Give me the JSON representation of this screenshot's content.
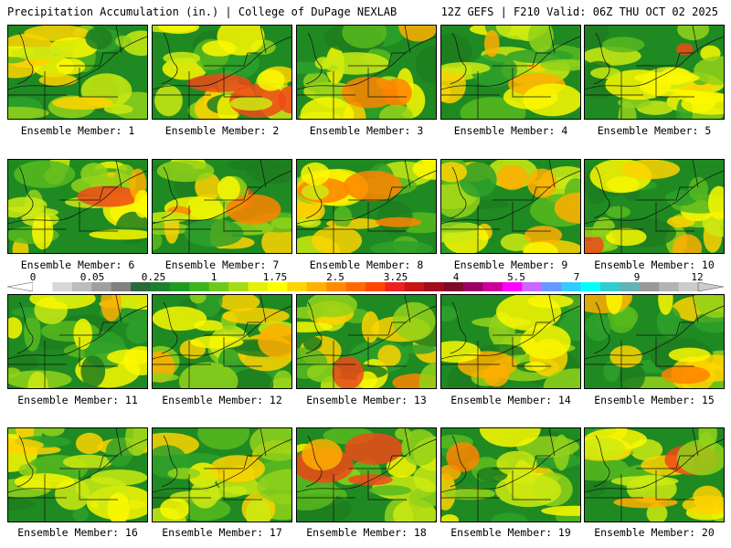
{
  "header": {
    "left_title": "Precipitation Accumulation (in.) | College of DuPage NEXLAB",
    "right_title": "12Z GEFS | F210 Valid: 06Z THU OCT 02 2025"
  },
  "colorbar": {
    "tick_labels": [
      "0",
      "0.05",
      "0.25",
      "1",
      "1.75",
      "2.5",
      "3.25",
      "4",
      "5.5",
      "7",
      "9",
      "12"
    ],
    "colors": [
      "#ffffff",
      "#d8d8d8",
      "#bdbdbd",
      "#9f9f9f",
      "#808080",
      "#2b6a3a",
      "#1e7f2e",
      "#1f9a1f",
      "#3bb51f",
      "#6fc91c",
      "#a8dc12",
      "#e4f00a",
      "#ffff00",
      "#ffd700",
      "#ffb300",
      "#ff8c00",
      "#ff6a00",
      "#ff4500",
      "#ee1f1f",
      "#c81414",
      "#a00d1e",
      "#7d0a28",
      "#990066",
      "#cc0099",
      "#ff00ff",
      "#cc66ff",
      "#6699ff",
      "#33ccff",
      "#00ffff",
      "#33cccc",
      "#66b2b2",
      "#999999",
      "#b3b3b3",
      "#cccccc"
    ]
  },
  "members": [
    {
      "label": "Ensemble Member: 1"
    },
    {
      "label": "Ensemble Member: 2"
    },
    {
      "label": "Ensemble Member: 3"
    },
    {
      "label": "Ensemble Member: 4"
    },
    {
      "label": "Ensemble Member: 5"
    },
    {
      "label": "Ensemble Member: 6"
    },
    {
      "label": "Ensemble Member: 7"
    },
    {
      "label": "Ensemble Member: 8"
    },
    {
      "label": "Ensemble Member: 9"
    },
    {
      "label": "Ensemble Member: 10"
    },
    {
      "label": "Ensemble Member: 11"
    },
    {
      "label": "Ensemble Member: 12"
    },
    {
      "label": "Ensemble Member: 13"
    },
    {
      "label": "Ensemble Member: 14"
    },
    {
      "label": "Ensemble Member: 15"
    },
    {
      "label": "Ensemble Member: 16"
    },
    {
      "label": "Ensemble Member: 17"
    },
    {
      "label": "Ensemble Member: 18"
    },
    {
      "label": "Ensemble Member: 19"
    },
    {
      "label": "Ensemble Member: 20"
    }
  ]
}
